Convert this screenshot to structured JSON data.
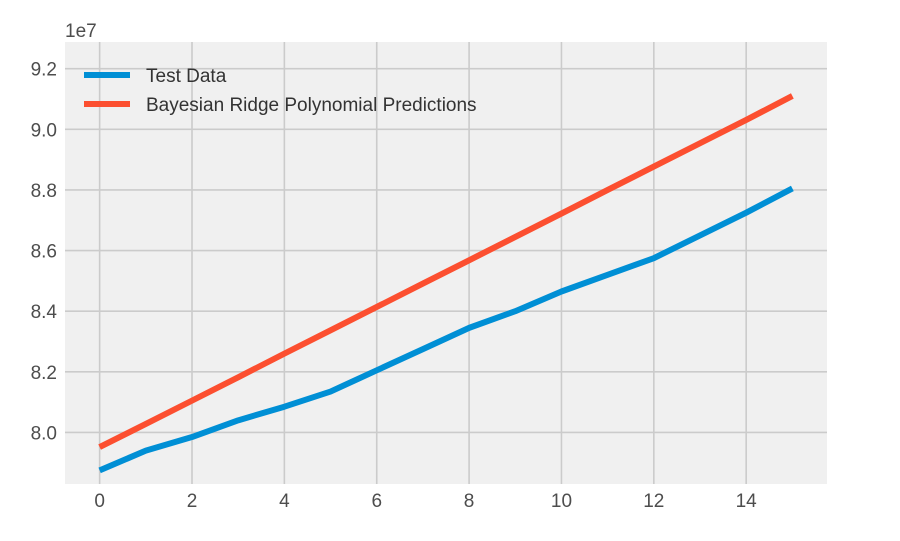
{
  "chart_data": {
    "type": "line",
    "title": "",
    "xlabel": "",
    "ylabel": "",
    "y_offset_label": "1e7",
    "xlim": [
      -0.75,
      15.75
    ],
    "ylim": [
      78.3,
      92.88
    ],
    "x_ticks": [
      0,
      2,
      4,
      6,
      8,
      10,
      12,
      14
    ],
    "y_ticks": [
      80.0,
      82.0,
      84.0,
      86.0,
      88.0,
      90.0,
      92.0
    ],
    "y_tick_labels": [
      "8.0",
      "8.2",
      "8.4",
      "8.6",
      "8.8",
      "9.0",
      "9.2"
    ],
    "grid": true,
    "legend_position": "top-left",
    "x": [
      0,
      1,
      2,
      3,
      4,
      5,
      6,
      7,
      8,
      9,
      10,
      11,
      12,
      13,
      14,
      15
    ],
    "series": [
      {
        "name": "Test Data",
        "color": "#008fd5",
        "values": [
          78.75,
          79.4,
          79.85,
          80.4,
          80.85,
          81.35,
          82.05,
          82.75,
          83.45,
          84.0,
          84.65,
          85.2,
          85.75,
          86.5,
          87.25,
          88.05
        ]
      },
      {
        "name": "Bayesian Ridge Polynomial Predictions",
        "color": "#fc4f30",
        "values": [
          79.52,
          80.28,
          81.05,
          81.82,
          82.6,
          83.37,
          84.14,
          84.91,
          85.68,
          86.45,
          87.22,
          88.0,
          88.77,
          89.54,
          90.31,
          91.1
        ]
      }
    ]
  },
  "colors": {
    "plot_background": "#f0f0f0",
    "grid": "#cbcbcb"
  }
}
